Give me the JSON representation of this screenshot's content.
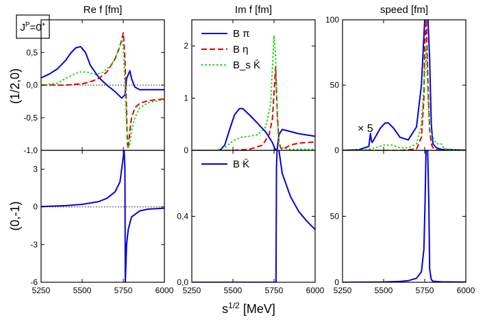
{
  "badge": "J^P=0^+",
  "x_label": "s^{1/2} [MeV]",
  "x_ticks": [
    5250,
    5500,
    5750,
    6000
  ],
  "x_tick_labels": [
    "5250",
    "5500",
    "5750",
    "6000"
  ],
  "xlim": [
    5250,
    6000
  ],
  "row_labels": [
    "(1/2,0)",
    "(0,-1)"
  ],
  "annotation": "× 5",
  "colors": {
    "b_pi": "#0000dd",
    "b_eta": "#e00000",
    "bs_kbar": "#00dd00",
    "b_kbar": "#0000dd"
  },
  "chart_data": [
    {
      "type": "line",
      "title": "Re f [fm]",
      "row": "(1/2,0)",
      "ylim": [
        -1.0,
        1.0
      ],
      "y_ticks": [
        -1.0,
        -0.5,
        0.0,
        0.5
      ],
      "y_tick_labels": [
        "-1,0",
        "-0,5",
        "0,0",
        "0,5"
      ],
      "reference_line": 0,
      "series": [
        {
          "key": "b_pi",
          "dash": "solid",
          "x": [
            5250,
            5300,
            5350,
            5400,
            5430,
            5460,
            5490,
            5520,
            5550,
            5600,
            5650,
            5700,
            5740,
            5760,
            5770,
            5790,
            5800,
            5820,
            5850,
            5900,
            6000
          ],
          "y": [
            0.11,
            0.17,
            0.25,
            0.38,
            0.49,
            0.57,
            0.59,
            0.5,
            0.3,
            0.12,
            0.0,
            -0.1,
            -0.2,
            -0.15,
            0.1,
            0.22,
            0.1,
            -0.03,
            -0.07,
            -0.07,
            -0.07
          ]
        },
        {
          "key": "b_eta",
          "dash": "dash",
          "x": [
            5250,
            5400,
            5500,
            5550,
            5600,
            5650,
            5700,
            5730,
            5750,
            5760,
            5765,
            5770,
            5775,
            5780,
            5790,
            5800,
            5820,
            5850,
            5900,
            6000
          ],
          "y": [
            0.0,
            0.0,
            0.02,
            0.05,
            0.1,
            0.2,
            0.4,
            0.6,
            0.8,
            0.4,
            0.0,
            -0.4,
            -0.9,
            -0.98,
            -0.7,
            -0.5,
            -0.35,
            -0.28,
            -0.24,
            -0.21
          ]
        },
        {
          "key": "bs_kbar",
          "dash": "dot",
          "x": [
            5250,
            5350,
            5420,
            5480,
            5530,
            5580,
            5630,
            5680,
            5720,
            5740,
            5750,
            5760,
            5770,
            5780,
            5790,
            5800,
            5820,
            5850,
            5900,
            6000
          ],
          "y": [
            0.0,
            0.03,
            0.13,
            0.2,
            0.2,
            0.16,
            0.2,
            0.32,
            0.52,
            0.7,
            0.6,
            0.0,
            -0.6,
            -0.95,
            -0.9,
            -0.7,
            -0.5,
            -0.35,
            -0.27,
            -0.22
          ]
        }
      ]
    },
    {
      "type": "line",
      "title": "Im f [fm]",
      "row": "(1/2,0)",
      "ylim": [
        0,
        2.5
      ],
      "y_ticks": [
        0,
        1,
        2
      ],
      "y_tick_labels": [
        "0",
        "1",
        "2"
      ],
      "legend": [
        "B π",
        "B η",
        "B_s K̄"
      ],
      "legend_position": "top-left",
      "series": [
        {
          "key": "b_pi",
          "dash": "solid",
          "x": [
            5250,
            5420,
            5450,
            5480,
            5510,
            5540,
            5560,
            5600,
            5650,
            5700,
            5740,
            5760,
            5770,
            5780,
            5800,
            5850,
            5900,
            6000
          ],
          "y": [
            0,
            0,
            0.1,
            0.4,
            0.68,
            0.8,
            0.8,
            0.68,
            0.52,
            0.35,
            0.15,
            0.0,
            0.03,
            0.3,
            0.4,
            0.36,
            0.32,
            0.27
          ]
        },
        {
          "key": "b_eta",
          "dash": "dash",
          "x": [
            5250,
            5500,
            5600,
            5680,
            5720,
            5740,
            5750,
            5760,
            5770,
            5780,
            5790,
            5800,
            5850,
            5900,
            6000
          ],
          "y": [
            0,
            0,
            0.02,
            0.1,
            0.3,
            0.6,
            1.1,
            1.6,
            0.7,
            0.15,
            0.05,
            0.02,
            0.1,
            0.14,
            0.16
          ]
        },
        {
          "key": "bs_kbar",
          "dash": "dot",
          "x": [
            5250,
            5400,
            5450,
            5500,
            5550,
            5600,
            5650,
            5700,
            5730,
            5750,
            5760,
            5770,
            5780,
            5790,
            5800,
            5850,
            5900,
            6000
          ],
          "y": [
            0,
            0,
            0.05,
            0.18,
            0.25,
            0.27,
            0.3,
            0.45,
            0.9,
            2.2,
            1.8,
            0.6,
            0.15,
            0.08,
            0.05,
            0.02,
            0.02,
            0.02
          ]
        }
      ]
    },
    {
      "type": "line",
      "title": "speed [fm]",
      "row": "(1/2,0)",
      "ylim": [
        0,
        100
      ],
      "y_ticks": [
        0,
        50,
        100
      ],
      "y_tick_labels": [
        "0",
        "50",
        "100"
      ],
      "series": [
        {
          "key": "b_pi",
          "dash": "solid",
          "x": [
            5250,
            5350,
            5410,
            5420,
            5425,
            5430,
            5440,
            5480,
            5510,
            5530,
            5560,
            5600,
            5650,
            5700,
            5730,
            5750,
            5760,
            5770,
            5780,
            5790,
            5800,
            5820,
            5850,
            6000
          ],
          "y": [
            0,
            0.5,
            3,
            13,
            8,
            6,
            8,
            17,
            21,
            21,
            17,
            10,
            8,
            18,
            50,
            100,
            100,
            100,
            70,
            20,
            5,
            2,
            0.8,
            0.2
          ]
        },
        {
          "key": "b_eta",
          "dash": "dash",
          "x": [
            5250,
            5600,
            5700,
            5730,
            5745,
            5750,
            5760,
            5770,
            5780,
            5790,
            5800,
            5820,
            5850,
            6000
          ],
          "y": [
            0,
            0,
            1,
            10,
            40,
            80,
            100,
            50,
            15,
            5,
            2,
            0.5,
            0,
            0
          ]
        },
        {
          "key": "bs_kbar",
          "dash": "dot",
          "x": [
            5250,
            5400,
            5450,
            5500,
            5550,
            5600,
            5650,
            5700,
            5730,
            5750,
            5760,
            5770,
            5780,
            5800,
            5820,
            5850,
            5870,
            6000
          ],
          "y": [
            0,
            0.5,
            2,
            4,
            4,
            2,
            2,
            5,
            20,
            60,
            80,
            40,
            15,
            10,
            5,
            5,
            1,
            0
          ]
        }
      ]
    },
    {
      "type": "line",
      "title": "",
      "row": "(0,-1)",
      "ylim": [
        -6,
        4.5
      ],
      "y_ticks": [
        -6,
        -3,
        0,
        3
      ],
      "y_tick_labels": [
        "-6",
        "-3",
        "0",
        "3"
      ],
      "reference_line": 0,
      "series": [
        {
          "key": "b_kbar",
          "dash": "solid",
          "x": [
            5250,
            5400,
            5500,
            5600,
            5650,
            5700,
            5730,
            5745,
            5755,
            5760,
            5762,
            5765,
            5770,
            5780,
            5800,
            5850,
            5900,
            6000
          ],
          "y": [
            0.02,
            0.1,
            0.2,
            0.42,
            0.68,
            1.2,
            2.0,
            3.5,
            4.5,
            3.0,
            -6,
            -5,
            -3.0,
            -1.8,
            -0.8,
            -0.32,
            -0.18,
            -0.1
          ]
        }
      ]
    },
    {
      "type": "line",
      "title": "",
      "row": "(0,-1)",
      "ylim": [
        0,
        0.8
      ],
      "y_ticks": [
        0,
        0.4
      ],
      "y_tick_labels": [
        "0,0",
        "0,4"
      ],
      "legend": [
        "B K̄"
      ],
      "legend_position": "top-left",
      "series": [
        {
          "key": "b_kbar",
          "dash": "solid",
          "x": [
            5250,
            5760,
            5762,
            5765,
            5770,
            5780,
            5800,
            5850,
            5900,
            5950,
            6000
          ],
          "y": [
            0,
            0,
            0,
            0.7,
            0.84,
            0.8,
            0.66,
            0.52,
            0.43,
            0.37,
            0.32
          ]
        }
      ]
    },
    {
      "type": "line",
      "title": "",
      "row": "(0,-1)",
      "ylim": [
        0,
        100
      ],
      "y_ticks": [
        0,
        50
      ],
      "y_tick_labels": [
        "0",
        "50"
      ],
      "series": [
        {
          "key": "b_kbar",
          "dash": "solid",
          "x": [
            5250,
            5500,
            5600,
            5650,
            5700,
            5730,
            5745,
            5752,
            5758,
            5768,
            5775,
            5780,
            5790,
            5800,
            5850,
            6000
          ],
          "y": [
            0,
            0.2,
            0.6,
            1.2,
            3,
            8,
            25,
            60,
            100,
            100,
            60,
            10,
            2,
            0.8,
            0.3,
            0.1
          ]
        }
      ]
    }
  ]
}
